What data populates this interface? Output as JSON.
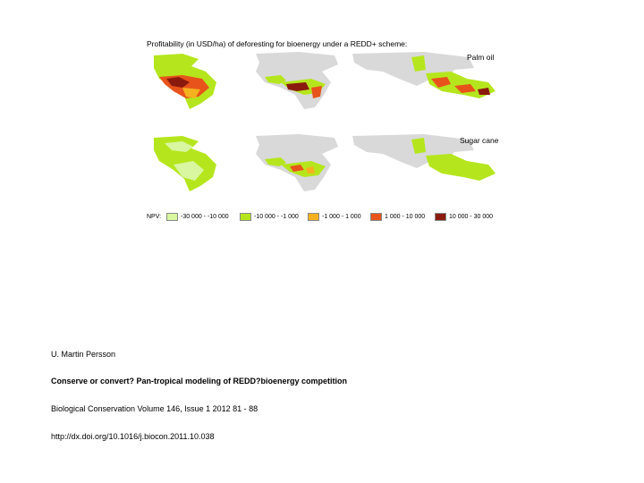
{
  "figure": {
    "title": "Profitability (in USD/ha) of deforesting for bioenergy under a REDD+ scheme:",
    "panels": [
      {
        "label": "Palm oil"
      },
      {
        "label": "Sugar cane"
      }
    ],
    "legend": {
      "prefix": "NPV:",
      "items": [
        {
          "label": "-30 000 - -10 000",
          "color": "#d8f7a0"
        },
        {
          "label": "-10 000 - -1 000",
          "color": "#b5e61d"
        },
        {
          "label": "-1 000 - 1 000",
          "color": "#f5b21e"
        },
        {
          "label": "1 000 - 10 000",
          "color": "#e8531b"
        },
        {
          "label": "10 000 - 30 000",
          "color": "#8b1a0e"
        }
      ]
    },
    "colors": {
      "land": "#d9d9d9",
      "low": "#d8f7a0",
      "mid": "#b5e61d",
      "neutral": "#f5b21e",
      "high": "#e8531b",
      "very_high": "#8b1a0e"
    }
  },
  "caption": {
    "author": "U.  Martin Persson",
    "title": "Conserve or convert? Pan-tropical modeling of REDD?bioenergy competition",
    "journal": "Biological Conservation Volume 146, Issue 1 2012 81 - 88",
    "doi": "http://dx.doi.org/10.1016/j.biocon.2011.10.038"
  }
}
